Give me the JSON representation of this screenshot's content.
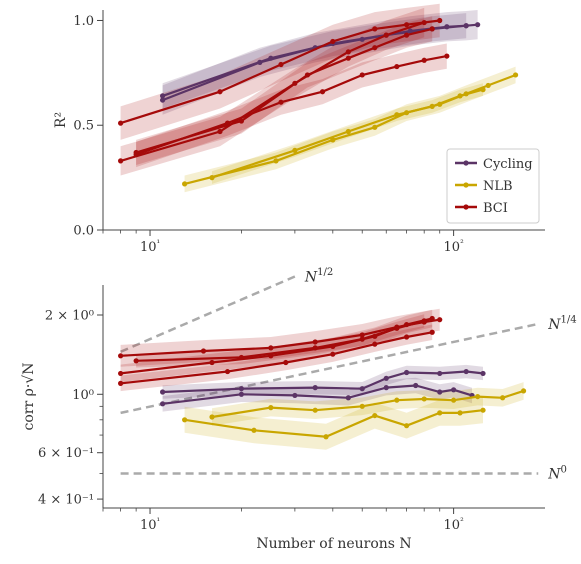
{
  "chart_data": [
    {
      "type": "line",
      "ylabel": "R²",
      "xlabel": "",
      "xscale": "log",
      "xlim": [
        7,
        200
      ],
      "ylim": [
        0,
        1.05
      ],
      "yticks": [
        0.0,
        0.5,
        1.0
      ],
      "ytick_labels": [
        "0.0",
        "0.5",
        "1.0"
      ],
      "xticks": [
        10,
        100
      ],
      "xtick_labels": [
        "10¹",
        "10²"
      ],
      "legend": {
        "placement": "lower-right",
        "entries": [
          {
            "label": "Cycling",
            "color": "#5b3466"
          },
          {
            "label": "NLB",
            "color": "#c9a600"
          },
          {
            "label": "BCI",
            "color": "#a50a0a"
          }
        ]
      },
      "series": [
        {
          "group": "Cycling",
          "x": [
            11,
            23,
            35,
            50,
            72,
            95,
            110,
            120
          ],
          "y": [
            0.62,
            0.8,
            0.87,
            0.91,
            0.95,
            0.97,
            0.975,
            0.98
          ],
          "band": 0.07
        },
        {
          "group": "Cycling",
          "x": [
            11,
            25,
            40,
            60,
            85,
            110
          ],
          "y": [
            0.64,
            0.82,
            0.89,
            0.93,
            0.96,
            0.975
          ],
          "band": 0.06
        },
        {
          "group": "NLB",
          "x": [
            13,
            26,
            40,
            55,
            70,
            90,
            110,
            130,
            160
          ],
          "y": [
            0.22,
            0.33,
            0.43,
            0.49,
            0.56,
            0.6,
            0.65,
            0.69,
            0.74
          ],
          "band": 0.04
        },
        {
          "group": "NLB",
          "x": [
            16,
            30,
            45,
            65,
            85,
            105,
            125
          ],
          "y": [
            0.25,
            0.38,
            0.47,
            0.55,
            0.59,
            0.64,
            0.67
          ],
          "band": 0.03
        },
        {
          "group": "BCI",
          "x": [
            8,
            17,
            27,
            40,
            55,
            70,
            90
          ],
          "y": [
            0.51,
            0.66,
            0.79,
            0.9,
            0.96,
            0.98,
            1.0
          ],
          "band": 0.08
        },
        {
          "group": "BCI",
          "x": [
            8,
            17,
            30,
            45,
            60,
            80
          ],
          "y": [
            0.33,
            0.47,
            0.7,
            0.85,
            0.93,
            0.99
          ],
          "band": 0.07
        },
        {
          "group": "BCI",
          "x": [
            9,
            18,
            27,
            37,
            50,
            65,
            80,
            95
          ],
          "y": [
            0.36,
            0.51,
            0.61,
            0.66,
            0.74,
            0.78,
            0.81,
            0.83
          ],
          "band": 0.06
        },
        {
          "group": "BCI",
          "x": [
            9,
            20,
            33,
            45,
            55,
            70,
            85
          ],
          "y": [
            0.37,
            0.52,
            0.74,
            0.82,
            0.87,
            0.93,
            0.96
          ],
          "band": 0.06
        }
      ]
    },
    {
      "type": "line",
      "xlabel": "Number of neurons N",
      "ylabel": "corr ρ·√N",
      "xscale": "log",
      "yscale": "log",
      "xlim": [
        7,
        200
      ],
      "ylim": [
        0.37,
        2.6
      ],
      "yticks": [
        0.4,
        0.6,
        1.0,
        2.0
      ],
      "ytick_labels": [
        "4 × 10⁻¹",
        "6 × 10⁻¹",
        "10⁰",
        "2 × 10⁰"
      ],
      "xticks": [
        10,
        100
      ],
      "xtick_labels": [
        "10¹",
        "10²"
      ],
      "reference_lines": [
        {
          "label": "N^1/2",
          "label_base": "N",
          "label_sup": "1/2",
          "x": [
            8,
            30
          ],
          "y": [
            1.45,
            2.8
          ]
        },
        {
          "label": "N^1/4",
          "label_base": "N",
          "label_sup": "1/4",
          "x": [
            8,
            190
          ],
          "y": [
            0.85,
            1.85
          ]
        },
        {
          "label": "N^0",
          "label_base": "N",
          "label_sup": "0",
          "x": [
            8,
            190
          ],
          "y": [
            0.5,
            0.5
          ]
        }
      ],
      "series": [
        {
          "group": "Cycling",
          "x": [
            11,
            20,
            35,
            50,
            60,
            70,
            90,
            110,
            125
          ],
          "y": [
            1.02,
            1.05,
            1.06,
            1.05,
            1.15,
            1.21,
            1.2,
            1.22,
            1.2
          ],
          "band": 0.06
        },
        {
          "group": "Cycling",
          "x": [
            11,
            20,
            30,
            45,
            60,
            75,
            90,
            100,
            115
          ],
          "y": [
            0.92,
            1.0,
            0.99,
            0.97,
            1.06,
            1.08,
            1.02,
            1.04,
            0.99
          ],
          "band": 0.07
        },
        {
          "group": "NLB",
          "x": [
            13,
            22,
            38,
            55,
            70,
            90,
            105,
            125
          ],
          "y": [
            0.8,
            0.73,
            0.69,
            0.83,
            0.76,
            0.85,
            0.85,
            0.87
          ],
          "band": 0.12
        },
        {
          "group": "NLB",
          "x": [
            16,
            25,
            35,
            50,
            65,
            80,
            100,
            120,
            145,
            170
          ],
          "y": [
            0.82,
            0.89,
            0.87,
            0.9,
            0.95,
            0.96,
            0.95,
            0.98,
            0.97,
            1.03
          ],
          "band": 0.08
        },
        {
          "group": "BCI",
          "x": [
            8,
            15,
            25,
            35,
            50,
            65,
            80,
            90
          ],
          "y": [
            1.4,
            1.46,
            1.5,
            1.58,
            1.68,
            1.8,
            1.88,
            1.92
          ],
          "band": 0.1
        },
        {
          "group": "BCI",
          "x": [
            8,
            16,
            25,
            40,
            55,
            70,
            85
          ],
          "y": [
            1.2,
            1.32,
            1.4,
            1.52,
            1.66,
            1.84,
            1.94
          ],
          "band": 0.08
        },
        {
          "group": "BCI",
          "x": [
            8,
            18,
            28,
            40,
            55,
            70,
            85
          ],
          "y": [
            1.1,
            1.22,
            1.32,
            1.42,
            1.55,
            1.65,
            1.72
          ],
          "band": 0.07
        },
        {
          "group": "BCI",
          "x": [
            9,
            20,
            35,
            50,
            65,
            80
          ],
          "y": [
            1.34,
            1.38,
            1.5,
            1.62,
            1.78,
            1.9
          ],
          "band": 0.06
        }
      ]
    }
  ]
}
